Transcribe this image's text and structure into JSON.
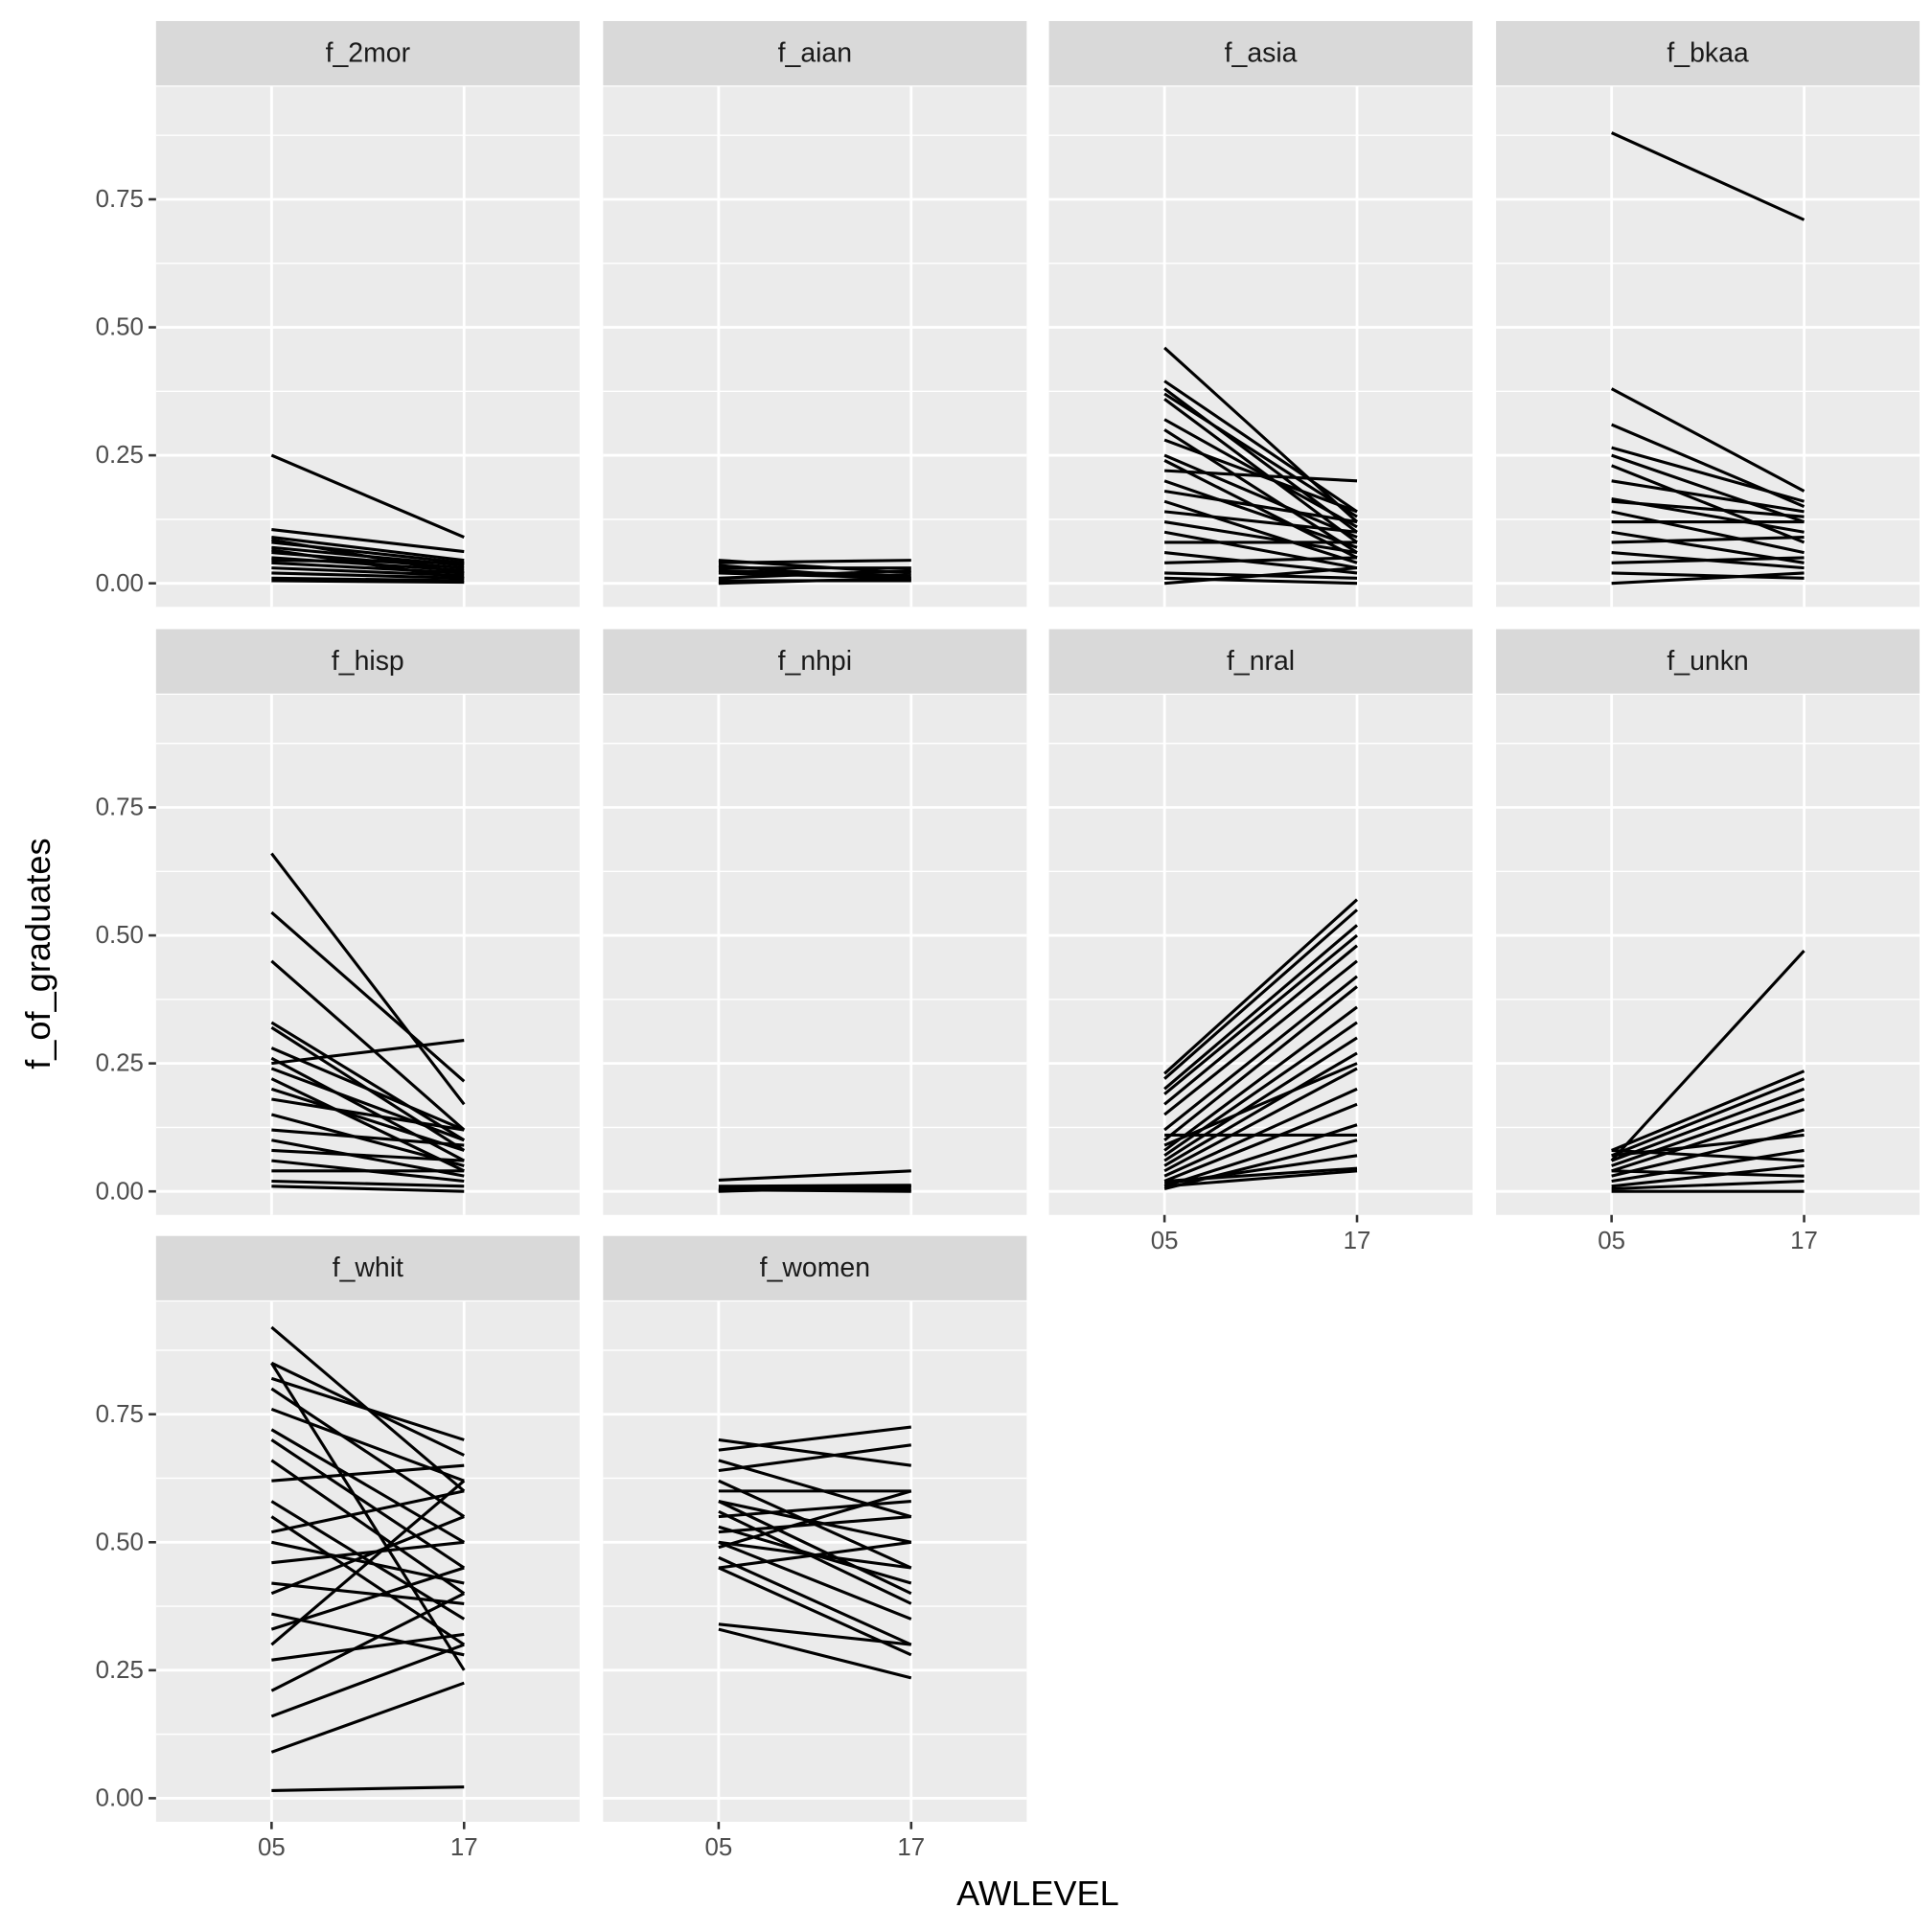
{
  "chart_data": {
    "type": "line",
    "color": "#000000",
    "grid": true,
    "xlabel": "AWLEVEL",
    "ylabel": "f_of_graduates",
    "categories": [
      "05",
      "17"
    ],
    "ylim": [
      -0.046,
      0.97
    ],
    "yticks": [
      {
        "value": 0,
        "label": "0.00"
      },
      {
        "value": 0.25,
        "label": "0.25"
      },
      {
        "value": 0.5,
        "label": "0.50"
      },
      {
        "value": 0.75,
        "label": "0.75"
      }
    ],
    "facets": [
      {
        "title": "f_2mor",
        "series": [
          {
            "values": [
              0.25,
              0.09
            ]
          },
          {
            "values": [
              0.105,
              0.062
            ]
          },
          {
            "values": [
              0.09,
              0.045
            ]
          },
          {
            "values": [
              0.08,
              0.04
            ]
          },
          {
            "values": [
              0.07,
              0.035
            ]
          },
          {
            "values": [
              0.06,
              0.03
            ]
          },
          {
            "values": [
              0.05,
              0.025
            ]
          },
          {
            "values": [
              0.04,
              0.02
            ]
          },
          {
            "values": [
              0.03,
              0.015
            ]
          },
          {
            "values": [
              0.02,
              0.01
            ]
          },
          {
            "values": [
              0.01,
              0.005
            ]
          },
          {
            "values": [
              0.005,
              0.002
            ]
          },
          {
            "values": [
              0.085,
              0.02
            ]
          },
          {
            "values": [
              0.045,
              0.04
            ]
          },
          {
            "values": [
              0.065,
              0.01
            ]
          }
        ]
      },
      {
        "title": "f_aian",
        "series": [
          {
            "values": [
              0.045,
              0.02
            ]
          },
          {
            "values": [
              0.04,
              0.045
            ]
          },
          {
            "values": [
              0.03,
              0.03
            ]
          },
          {
            "values": [
              0.02,
              0.01
            ]
          },
          {
            "values": [
              0.01,
              0.025
            ]
          },
          {
            "values": [
              0.005,
              0.005
            ]
          },
          {
            "values": [
              0.025,
              0.015
            ]
          },
          {
            "values": [
              0.035,
              0.005
            ]
          },
          {
            "values": [
              0,
              0.01
            ]
          }
        ]
      },
      {
        "title": "f_asia",
        "series": [
          {
            "values": [
              0.46,
              0.12
            ]
          },
          {
            "values": [
              0.395,
              0.14
            ]
          },
          {
            "values": [
              0.38,
              0.1
            ]
          },
          {
            "values": [
              0.37,
              0.13
            ]
          },
          {
            "values": [
              0.36,
              0.08
            ]
          },
          {
            "values": [
              0.32,
              0.11
            ]
          },
          {
            "values": [
              0.3,
              0.06
            ]
          },
          {
            "values": [
              0.28,
              0.14
            ]
          },
          {
            "values": [
              0.25,
              0.09
            ]
          },
          {
            "values": [
              0.24,
              0.05
            ]
          },
          {
            "values": [
              0.22,
              0.2
            ]
          },
          {
            "values": [
              0.2,
              0.07
            ]
          },
          {
            "values": [
              0.18,
              0.12
            ]
          },
          {
            "values": [
              0.16,
              0.04
            ]
          },
          {
            "values": [
              0.14,
              0.1
            ]
          },
          {
            "values": [
              0.12,
              0.06
            ]
          },
          {
            "values": [
              0.1,
              0.03
            ]
          },
          {
            "values": [
              0.08,
              0.08
            ]
          },
          {
            "values": [
              0.06,
              0.02
            ]
          },
          {
            "values": [
              0.04,
              0.05
            ]
          },
          {
            "values": [
              0.02,
              0.01
            ]
          },
          {
            "values": [
              0.01,
              0
            ]
          },
          {
            "values": [
              0,
              0.03
            ]
          }
        ]
      },
      {
        "title": "f_bkaa",
        "series": [
          {
            "values": [
              0.88,
              0.71
            ]
          },
          {
            "values": [
              0.38,
              0.18
            ]
          },
          {
            "values": [
              0.31,
              0.15
            ]
          },
          {
            "values": [
              0.265,
              0.16
            ]
          },
          {
            "values": [
              0.25,
              0.12
            ]
          },
          {
            "values": [
              0.23,
              0.08
            ]
          },
          {
            "values": [
              0.2,
              0.14
            ]
          },
          {
            "values": [
              0.165,
              0.1
            ]
          },
          {
            "values": [
              0.16,
              0.13
            ]
          },
          {
            "values": [
              0.14,
              0.06
            ]
          },
          {
            "values": [
              0.12,
              0.12
            ]
          },
          {
            "values": [
              0.1,
              0.04
            ]
          },
          {
            "values": [
              0.08,
              0.09
            ]
          },
          {
            "values": [
              0.06,
              0.03
            ]
          },
          {
            "values": [
              0.04,
              0.05
            ]
          },
          {
            "values": [
              0.02,
              0.01
            ]
          },
          {
            "values": [
              0,
              0.02
            ]
          }
        ]
      },
      {
        "title": "f_hisp",
        "series": [
          {
            "values": [
              0.66,
              0.17
            ]
          },
          {
            "values": [
              0.545,
              0.215
            ]
          },
          {
            "values": [
              0.45,
              0.12
            ]
          },
          {
            "values": [
              0.33,
              0.1
            ]
          },
          {
            "values": [
              0.32,
              0.08
            ]
          },
          {
            "values": [
              0.25,
              0.295
            ]
          },
          {
            "values": [
              0.28,
              0.12
            ]
          },
          {
            "values": [
              0.26,
              0.06
            ]
          },
          {
            "values": [
              0.24,
              0.1
            ]
          },
          {
            "values": [
              0.22,
              0.04
            ]
          },
          {
            "values": [
              0.2,
              0.08
            ]
          },
          {
            "values": [
              0.18,
              0.12
            ]
          },
          {
            "values": [
              0.15,
              0.05
            ]
          },
          {
            "values": [
              0.12,
              0.09
            ]
          },
          {
            "values": [
              0.1,
              0.03
            ]
          },
          {
            "values": [
              0.08,
              0.06
            ]
          },
          {
            "values": [
              0.06,
              0.02
            ]
          },
          {
            "values": [
              0.04,
              0.04
            ]
          },
          {
            "values": [
              0.02,
              0.01
            ]
          },
          {
            "values": [
              0.01,
              0
            ]
          }
        ]
      },
      {
        "title": "f_nhpi",
        "series": [
          {
            "values": [
              0.022,
              0.04
            ]
          },
          {
            "values": [
              0.01,
              0.012
            ]
          },
          {
            "values": [
              0.005,
              0.008
            ]
          },
          {
            "values": [
              0.002,
              0.003
            ]
          },
          {
            "values": [
              0,
              0.01
            ]
          },
          {
            "values": [
              0.003,
              0
            ]
          }
        ]
      },
      {
        "title": "f_nral",
        "series": [
          {
            "values": [
              0.23,
              0.57
            ]
          },
          {
            "values": [
              0.22,
              0.55
            ]
          },
          {
            "values": [
              0.2,
              0.52
            ]
          },
          {
            "values": [
              0.19,
              0.5
            ]
          },
          {
            "values": [
              0.17,
              0.48
            ]
          },
          {
            "values": [
              0.15,
              0.45
            ]
          },
          {
            "values": [
              0.12,
              0.42
            ]
          },
          {
            "values": [
              0.1,
              0.4
            ]
          },
          {
            "values": [
              0.08,
              0.36
            ]
          },
          {
            "values": [
              0.07,
              0.33
            ]
          },
          {
            "values": [
              0.06,
              0.3
            ]
          },
          {
            "values": [
              0.05,
              0.27
            ]
          },
          {
            "values": [
              0.04,
              0.24
            ]
          },
          {
            "values": [
              0.03,
              0.2
            ]
          },
          {
            "values": [
              0.02,
              0.17
            ]
          },
          {
            "values": [
              0.01,
              0.13
            ]
          },
          {
            "values": [
              0.005,
              0.1
            ]
          },
          {
            "values": [
              0.015,
              0.07
            ]
          },
          {
            "values": [
              0.02,
              0.045
            ]
          },
          {
            "values": [
              0.01,
              0.04
            ]
          },
          {
            "values": [
              0.11,
              0.11
            ]
          },
          {
            "values": [
              0.09,
              0.25
            ]
          }
        ]
      },
      {
        "title": "f_unkn",
        "series": [
          {
            "values": [
              0.06,
              0.47
            ]
          },
          {
            "values": [
              0.08,
              0.235
            ]
          },
          {
            "values": [
              0.07,
              0.22
            ]
          },
          {
            "values": [
              0.06,
              0.2
            ]
          },
          {
            "values": [
              0.05,
              0.18
            ]
          },
          {
            "values": [
              0.04,
              0.16
            ]
          },
          {
            "values": [
              0.07,
              0.11
            ]
          },
          {
            "values": [
              0.03,
              0.12
            ]
          },
          {
            "values": [
              0.02,
              0.08
            ]
          },
          {
            "values": [
              0.01,
              0.05
            ]
          },
          {
            "values": [
              0.005,
              0.02
            ]
          },
          {
            "values": [
              0,
              0
            ]
          },
          {
            "values": [
              0.04,
              0.03
            ]
          },
          {
            "values": [
              0.08,
              0.06
            ]
          }
        ]
      },
      {
        "title": "f_whit",
        "series": [
          {
            "values": [
              0.92,
              0.6
            ]
          },
          {
            "values": [
              0.85,
              0.67
            ]
          },
          {
            "values": [
              0.82,
              0.7
            ]
          },
          {
            "values": [
              0.8,
              0.55
            ]
          },
          {
            "values": [
              0.76,
              0.62
            ]
          },
          {
            "values": [
              0.72,
              0.5
            ]
          },
          {
            "values": [
              0.7,
              0.45
            ]
          },
          {
            "values": [
              0.66,
              0.4
            ]
          },
          {
            "values": [
              0.62,
              0.65
            ]
          },
          {
            "values": [
              0.58,
              0.35
            ]
          },
          {
            "values": [
              0.55,
              0.3
            ]
          },
          {
            "values": [
              0.52,
              0.6
            ]
          },
          {
            "values": [
              0.5,
              0.42
            ]
          },
          {
            "values": [
              0.46,
              0.5
            ]
          },
          {
            "values": [
              0.42,
              0.38
            ]
          },
          {
            "values": [
              0.4,
              0.55
            ]
          },
          {
            "values": [
              0.36,
              0.28
            ]
          },
          {
            "values": [
              0.33,
              0.45
            ]
          },
          {
            "values": [
              0.3,
              0.62
            ]
          },
          {
            "values": [
              0.27,
              0.32
            ]
          },
          {
            "values": [
              0.21,
              0.4
            ]
          },
          {
            "values": [
              0.16,
              0.3
            ]
          },
          {
            "values": [
              0.09,
              0.225
            ]
          },
          {
            "values": [
              0.015,
              0.022
            ]
          },
          {
            "values": [
              0.85,
              0.25
            ]
          }
        ]
      },
      {
        "title": "f_women",
        "series": [
          {
            "values": [
              0.7,
              0.65
            ]
          },
          {
            "values": [
              0.68,
              0.725
            ]
          },
          {
            "values": [
              0.66,
              0.55
            ]
          },
          {
            "values": [
              0.64,
              0.69
            ]
          },
          {
            "values": [
              0.62,
              0.45
            ]
          },
          {
            "values": [
              0.6,
              0.6
            ]
          },
          {
            "values": [
              0.58,
              0.5
            ]
          },
          {
            "values": [
              0.56,
              0.38
            ]
          },
          {
            "values": [
              0.55,
              0.58
            ]
          },
          {
            "values": [
              0.53,
              0.42
            ]
          },
          {
            "values": [
              0.52,
              0.55
            ]
          },
          {
            "values": [
              0.5,
              0.35
            ]
          },
          {
            "values": [
              0.49,
              0.6
            ]
          },
          {
            "values": [
              0.47,
              0.3
            ]
          },
          {
            "values": [
              0.45,
              0.5
            ]
          },
          {
            "values": [
              0.45,
              0.28
            ]
          },
          {
            "values": [
              0.34,
              0.3
            ]
          },
          {
            "values": [
              0.33,
              0.235
            ]
          },
          {
            "values": [
              0.58,
              0.4
            ]
          },
          {
            "values": [
              0.5,
              0.45
            ]
          }
        ]
      }
    ]
  }
}
